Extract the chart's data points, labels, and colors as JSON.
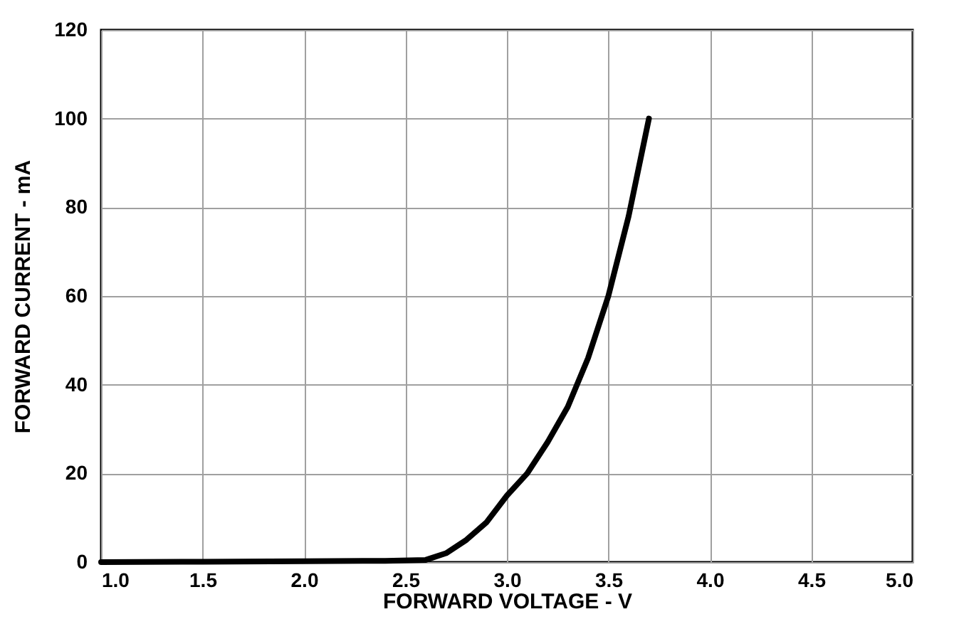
{
  "chart_data": {
    "type": "line",
    "xlabel": "FORWARD VOLTAGE - V",
    "ylabel": "FORWARD CURRENT - mA",
    "x": [
      1.0,
      1.5,
      2.0,
      2.4,
      2.6,
      2.7,
      2.8,
      2.9,
      3.0,
      3.1,
      3.2,
      3.3,
      3.4,
      3.5,
      3.6,
      3.7
    ],
    "series": [
      {
        "color": "#000000",
        "values": [
          0,
          0.1,
          0.2,
          0.3,
          0.5,
          2,
          5,
          9,
          15,
          20,
          27,
          35,
          46,
          60,
          78,
          100
        ]
      }
    ],
    "xlim": [
      1.0,
      5.0
    ],
    "xticks": [
      {
        "value": 1,
        "label": "1.0"
      },
      {
        "value": 1.5,
        "label": "1.5"
      },
      {
        "value": 2,
        "label": "2.0"
      },
      {
        "value": 2.5,
        "label": "2.5"
      },
      {
        "value": 3,
        "label": "3.0"
      },
      {
        "value": 3.5,
        "label": "3.5"
      },
      {
        "value": 4,
        "label": "4.0"
      },
      {
        "value": 4.5,
        "label": "4.5"
      },
      {
        "value": 5,
        "label": "5.0"
      }
    ],
    "ylim": [
      0,
      120
    ],
    "yticks": [
      0,
      20,
      40,
      60,
      80,
      100,
      120
    ],
    "grid": true,
    "marker": "none",
    "line_style": "solid"
  }
}
